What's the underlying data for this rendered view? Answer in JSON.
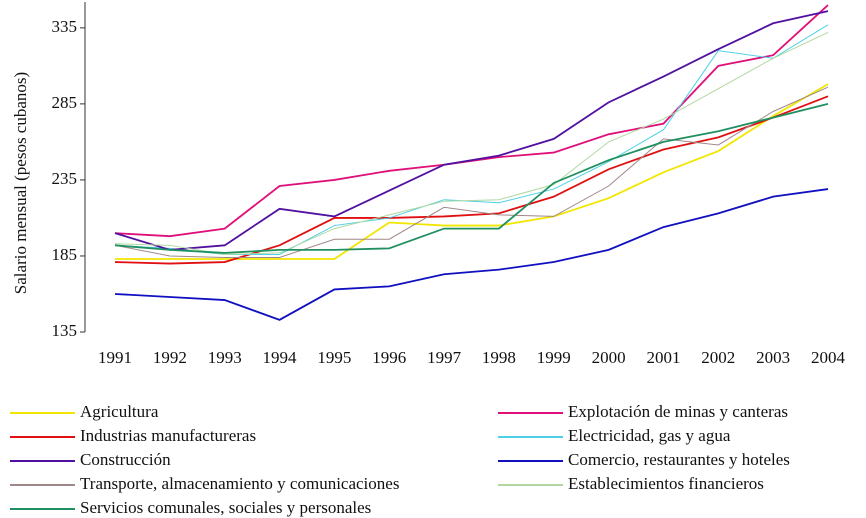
{
  "chart_data": {
    "type": "line",
    "y_label": "Salario mensual (pesos cubanos)",
    "x": [
      "1991",
      "1992",
      "1993",
      "1994",
      "1995",
      "1996",
      "1997",
      "1998",
      "1999",
      "2000",
      "2001",
      "2002",
      "2003",
      "2004"
    ],
    "ylim": [
      135,
      352
    ],
    "yticks": [
      135,
      185,
      235,
      285,
      335
    ],
    "series": [
      {
        "name": "Agricultura",
        "color": "#f2e600",
        "values": [
          183,
          183,
          183,
          183,
          183,
          207,
          205,
          205,
          211,
          223,
          240,
          254,
          277,
          298
        ]
      },
      {
        "name": "Explotación de minas y canteras",
        "color": "#e0107a",
        "values": [
          200,
          198,
          203,
          231,
          235,
          241,
          245,
          250,
          253,
          265,
          272,
          310,
          317,
          350
        ]
      },
      {
        "name": "Industrias manufactureras",
        "color": "#e01010",
        "values": [
          181,
          180,
          181,
          192,
          210,
          210,
          211,
          213,
          224,
          242,
          255,
          263,
          276,
          290
        ]
      },
      {
        "name": "Electricidad, gas y agua",
        "color": "#4dd0e8",
        "values": [
          192,
          190,
          186,
          186,
          205,
          210,
          222,
          220,
          229,
          247,
          268,
          320,
          315,
          337
        ]
      },
      {
        "name": "Construcción",
        "color": "#5010a0",
        "values": [
          200,
          189,
          192,
          216,
          211,
          228,
          245,
          251,
          262,
          286,
          303,
          321,
          338,
          346
        ]
      },
      {
        "name": "Comercio, restaurantes y hoteles",
        "color": "#1010c0",
        "values": [
          160,
          158,
          156,
          143,
          163,
          165,
          173,
          176,
          181,
          189,
          204,
          213,
          224,
          229
        ]
      },
      {
        "name": "Transporte, almacenamiento y comunicaciones",
        "color": "#a08888",
        "values": [
          192,
          185,
          184,
          184,
          196,
          196,
          217,
          212,
          211,
          231,
          262,
          258,
          280,
          296
        ]
      },
      {
        "name": "Establecimientos financieros",
        "color": "#b0d8a0",
        "values": [
          193,
          192,
          186,
          187,
          203,
          212,
          221,
          222,
          232,
          260,
          275,
          295,
          315,
          332
        ]
      },
      {
        "name": "Servicios comunales, sociales y personales",
        "color": "#209060",
        "values": [
          192,
          189,
          187,
          189,
          189,
          190,
          203,
          203,
          233,
          248,
          260,
          267,
          276,
          285
        ]
      }
    ]
  }
}
